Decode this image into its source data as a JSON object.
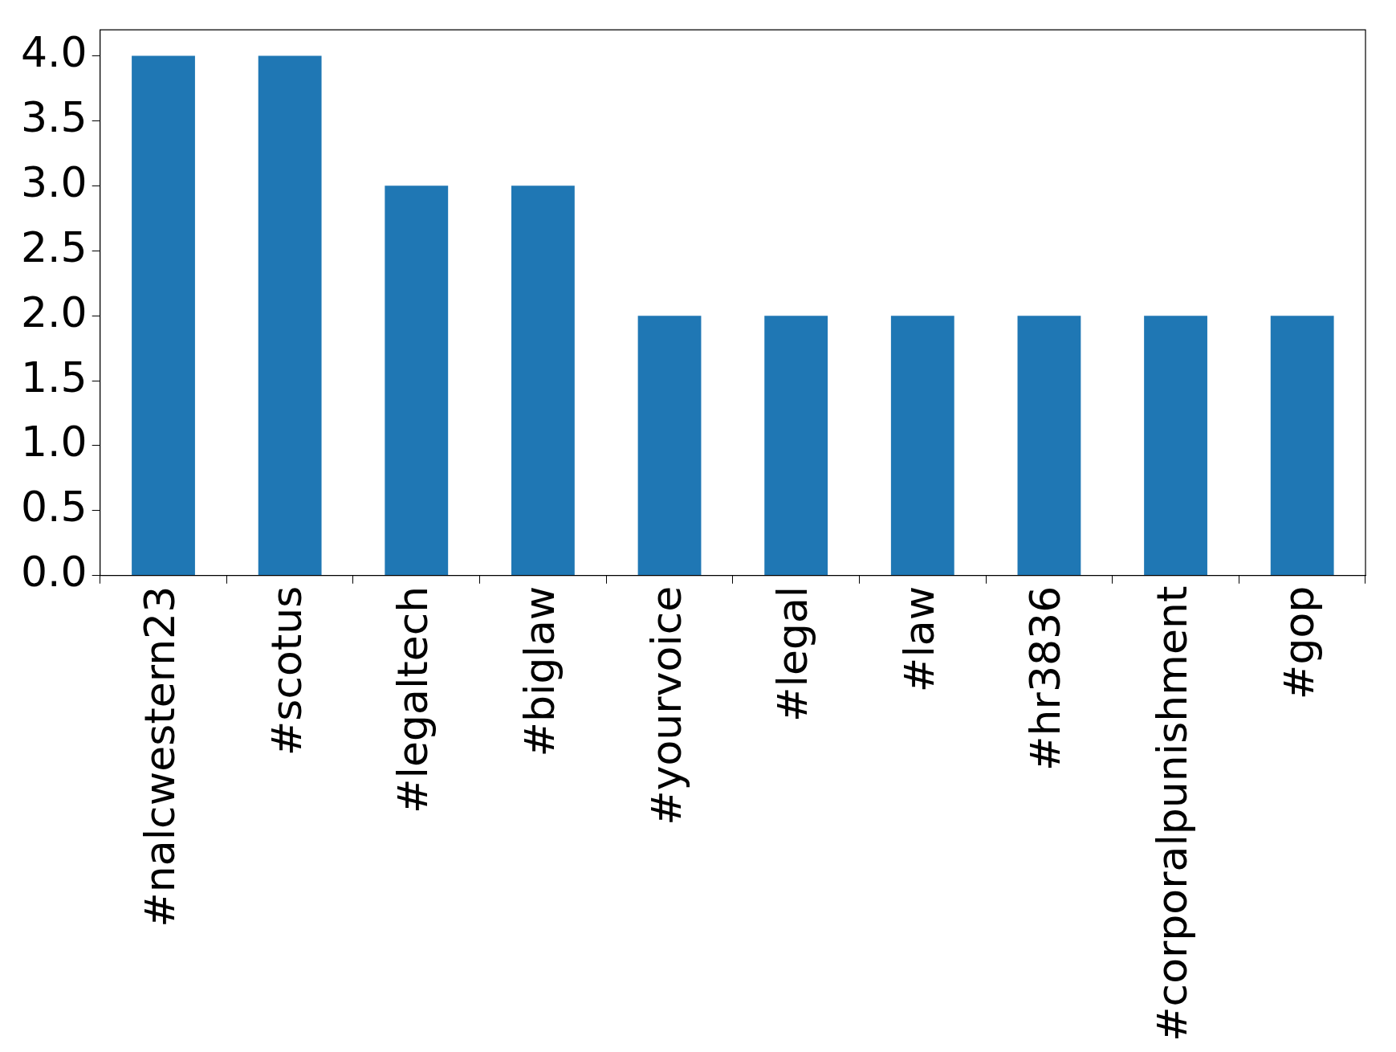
{
  "chart_data": {
    "type": "bar",
    "categories": [
      "#nalcwestern23",
      "#scotus",
      "#legaltech",
      "#biglaw",
      "#yourvoice",
      "#legal",
      "#law",
      "#hr3836",
      "#corporalpunishment",
      "#gop"
    ],
    "values": [
      4,
      4,
      3,
      3,
      2,
      2,
      2,
      2,
      2,
      2
    ],
    "color": "#1f77b4",
    "ylim": [
      0,
      4.2
    ],
    "yticks": [
      {
        "value": 0,
        "label": "0.0"
      },
      {
        "value": 0.5,
        "label": "0.5"
      },
      {
        "value": 1,
        "label": "1.0"
      },
      {
        "value": 1.5,
        "label": "1.5"
      },
      {
        "value": 2,
        "label": "2.0"
      },
      {
        "value": 2.5,
        "label": "2.5"
      },
      {
        "value": 3,
        "label": "3.0"
      },
      {
        "value": 3.5,
        "label": "3.5"
      },
      {
        "value": 4,
        "label": "4.0"
      }
    ],
    "grid": false,
    "legend": false
  }
}
